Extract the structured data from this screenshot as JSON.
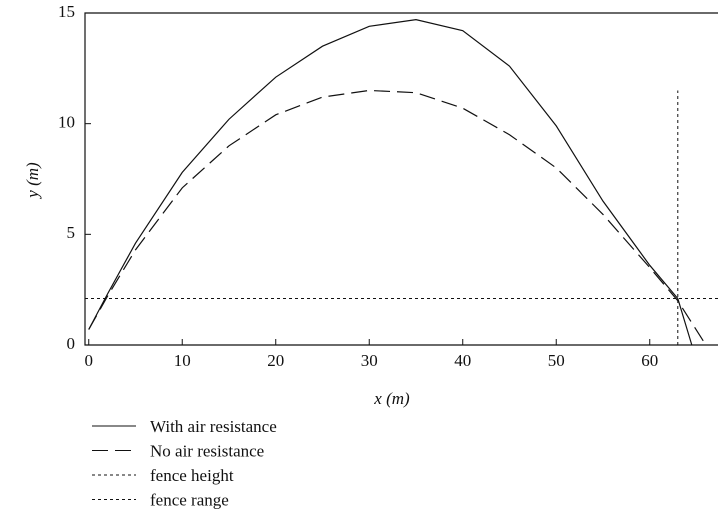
{
  "chart_data": {
    "type": "line",
    "xlabel": "x (m)",
    "ylabel": "y (m)",
    "x": [
      0,
      2,
      5,
      10,
      15,
      20,
      25,
      30,
      35,
      40,
      45,
      50,
      55,
      60,
      63,
      64.5,
      66
    ],
    "series": [
      {
        "name": "With air resistance",
        "color": "#111111",
        "dash": "solid",
        "values": [
          0.7,
          2.3,
          4.6,
          7.8,
          10.2,
          12.1,
          13.5,
          14.4,
          14.7,
          14.2,
          12.6,
          9.9,
          6.5,
          3.6,
          2.1,
          0,
          null
        ]
      },
      {
        "name": "No air resistance",
        "color": "#111111",
        "dash": "dashed",
        "values": [
          0.7,
          2.2,
          4.3,
          7.1,
          9.0,
          10.4,
          11.2,
          11.5,
          11.4,
          10.7,
          9.5,
          8.0,
          5.9,
          3.5,
          2.0,
          1.0,
          0
        ]
      }
    ],
    "reference_lines": [
      {
        "name": "fence height",
        "axis": "y",
        "value": 2.1
      },
      {
        "name": "fence range",
        "axis": "x",
        "value": 63,
        "top": 11.5
      }
    ],
    "xlim": [
      -0.4,
      67.3
    ],
    "ylim": [
      0,
      15
    ],
    "xticks": [
      0,
      10,
      20,
      30,
      40,
      50,
      60
    ],
    "yticks": [
      0,
      5,
      10,
      15
    ],
    "legend": "bottom-left"
  }
}
